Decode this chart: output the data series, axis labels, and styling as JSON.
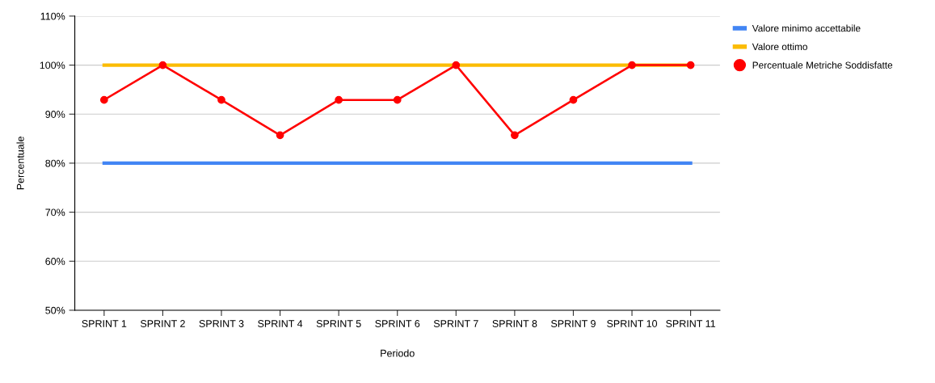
{
  "chart_data": {
    "type": "line",
    "xlabel": "Periodo",
    "ylabel": "Percentuale",
    "categories": [
      "SPRINT 1",
      "SPRINT 2",
      "SPRINT 3",
      "SPRINT 4",
      "SPRINT 5",
      "SPRINT 6",
      "SPRINT 7",
      "SPRINT 8",
      "SPRINT 9",
      "SPRINT 10",
      "SPRINT 11"
    ],
    "series": [
      {
        "name": "Valore minimo accettabile",
        "color": "#4285f4",
        "marker": "none",
        "values": [
          80,
          80,
          80,
          80,
          80,
          80,
          80,
          80,
          80,
          80,
          80
        ]
      },
      {
        "name": "Valore ottimo",
        "color": "#fbbc04",
        "marker": "none",
        "values": [
          100,
          100,
          100,
          100,
          100,
          100,
          100,
          100,
          100,
          100,
          100
        ]
      },
      {
        "name": "Percentuale Metriche Soddisfatte",
        "color": "#ff0000",
        "marker": "circle",
        "values": [
          92.9,
          100,
          92.9,
          85.7,
          92.9,
          92.9,
          100,
          85.7,
          92.9,
          100,
          100
        ]
      }
    ],
    "ylim": [
      50,
      110
    ],
    "yticks": [
      {
        "value": 50,
        "label": "50%"
      },
      {
        "value": 60,
        "label": "60%"
      },
      {
        "value": 70,
        "label": "70%"
      },
      {
        "value": 80,
        "label": "80%"
      },
      {
        "value": 90,
        "label": "90%"
      },
      {
        "value": 100,
        "label": "100%"
      },
      {
        "value": 110,
        "label": "110%"
      }
    ],
    "grid": "y",
    "legend": "top right"
  }
}
